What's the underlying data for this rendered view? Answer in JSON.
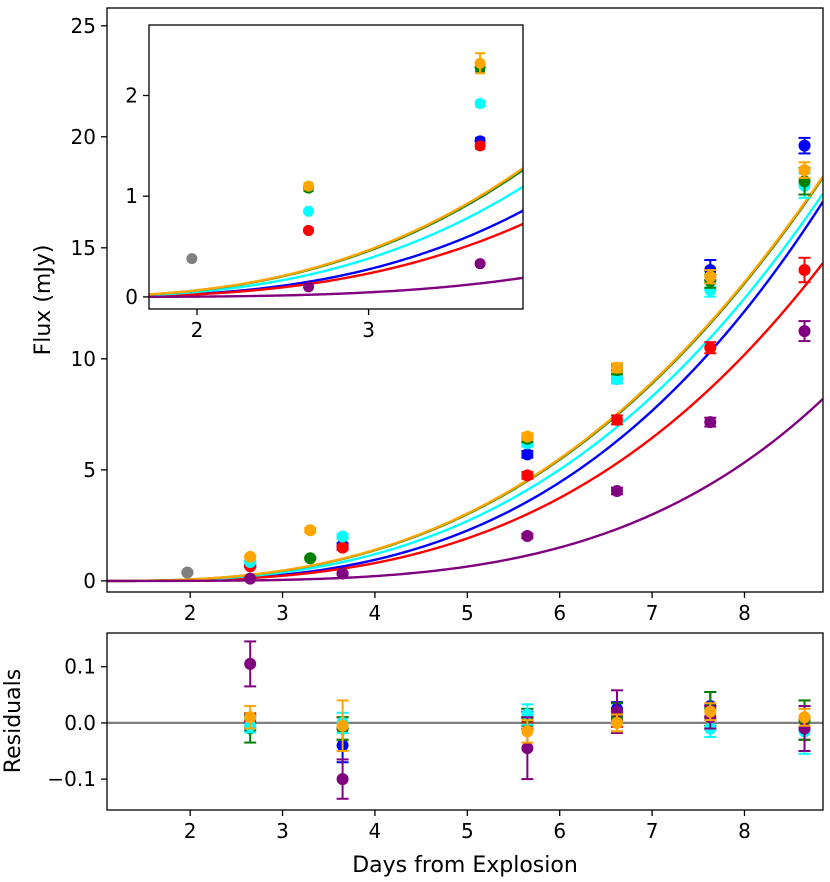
{
  "chart_data": [
    {
      "id": "main",
      "type": "line",
      "xlabel": "",
      "ylabel": "Flux (mJy)",
      "xlim": [
        1.1,
        8.85
      ],
      "ylim": [
        -0.5,
        25.8
      ],
      "xticks": [
        2,
        3,
        4,
        5,
        6,
        7,
        8
      ],
      "yticks": [
        0,
        5,
        10,
        15,
        20,
        25
      ],
      "grid": false,
      "series": [
        {
          "color": "#0000ff",
          "fit": {
            "a": 0.0415,
            "t0": 1.1,
            "p": 2.94
          },
          "x": [
            2.65,
            3.65,
            5.65,
            6.62,
            7.63,
            8.65
          ],
          "y": [
            0.68,
            1.6,
            5.7,
            9.1,
            14.0,
            19.6
          ],
          "err": [
            0.05,
            0.1,
            0.15,
            0.2,
            0.45,
            0.35
          ]
        },
        {
          "color": "#ff0000",
          "fit": {
            "a": 0.0355,
            "t0": 1.1,
            "p": 2.93
          },
          "x": [
            2.65,
            3.65,
            5.65,
            6.62,
            7.63,
            8.65
          ],
          "y": [
            0.66,
            1.5,
            4.75,
            7.25,
            10.5,
            14.0
          ],
          "err": [
            0.05,
            0.1,
            0.15,
            0.2,
            0.25,
            0.55
          ]
        },
        {
          "color": "#00ffff",
          "fit": {
            "a": 0.0665,
            "t0": 1.1,
            "p": 2.72
          },
          "x": [
            2.65,
            3.65,
            5.65,
            6.62,
            7.63,
            8.65
          ],
          "y": [
            0.85,
            2.0,
            6.2,
            9.1,
            13.1,
            17.8
          ],
          "err": [
            0.05,
            0.1,
            0.15,
            0.2,
            0.3,
            0.55
          ]
        },
        {
          "color": "#008000",
          "fit": {
            "a": 0.085,
            "t0": 1.1,
            "p": 2.62
          },
          "x": [
            3.3,
            5.65,
            6.62,
            7.63,
            8.65
          ],
          "y": [
            1.02,
            6.4,
            9.5,
            13.5,
            18.0
          ],
          "err": [
            0.05,
            0.15,
            0.2,
            0.3,
            0.6
          ]
        },
        {
          "color": "#ffa500",
          "fit": {
            "a": 0.087,
            "t0": 1.1,
            "p": 2.61
          },
          "x": [
            2.65,
            3.3,
            5.65,
            6.62,
            7.63,
            8.65
          ],
          "y": [
            1.08,
            2.28,
            6.5,
            9.6,
            13.7,
            18.5
          ],
          "err": [
            0.05,
            0.1,
            0.15,
            0.2,
            0.3,
            0.35
          ]
        },
        {
          "color": "#800080",
          "fit": {
            "a": 0.0042,
            "t0": 1.1,
            "p": 3.7
          },
          "x": [
            2.65,
            3.65,
            5.65,
            6.62,
            7.63,
            8.65
          ],
          "y": [
            0.1,
            0.33,
            2.02,
            4.05,
            7.15,
            11.25
          ],
          "err": [
            0.04,
            0.05,
            0.1,
            0.15,
            0.2,
            0.45
          ]
        },
        {
          "color": "#808080",
          "x": [
            1.97
          ],
          "y": [
            0.38
          ],
          "err": [
            0.05
          ]
        }
      ]
    },
    {
      "id": "inset",
      "type": "line",
      "xlabel": "",
      "ylabel": "",
      "xlim": [
        1.72,
        3.9
      ],
      "ylim": [
        -0.12,
        2.7
      ],
      "xticks": [
        2,
        3
      ],
      "yticks": [
        0,
        1,
        2
      ],
      "grid": false,
      "series": [
        {
          "color": "#0000ff",
          "fit": {
            "a": 0.0415,
            "t0": 1.1,
            "p": 2.94
          },
          "x": [
            2.65,
            3.65
          ],
          "y": [
            0.66,
            1.55
          ],
          "err": [
            0.02,
            0.03
          ]
        },
        {
          "color": "#ff0000",
          "fit": {
            "a": 0.0355,
            "t0": 1.1,
            "p": 2.93
          },
          "x": [
            2.65,
            3.65
          ],
          "y": [
            0.66,
            1.5
          ],
          "err": [
            0.02,
            0.03
          ]
        },
        {
          "color": "#00ffff",
          "fit": {
            "a": 0.0665,
            "t0": 1.1,
            "p": 2.72
          },
          "x": [
            2.65,
            3.65
          ],
          "y": [
            0.85,
            1.92
          ],
          "err": [
            0.02,
            0.03
          ]
        },
        {
          "color": "#008000",
          "fit": {
            "a": 0.085,
            "t0": 1.1,
            "p": 2.62
          },
          "x": [
            2.65,
            3.65
          ],
          "y": [
            1.08,
            2.28
          ],
          "err": [
            0.03,
            0.04
          ]
        },
        {
          "color": "#ffa500",
          "fit": {
            "a": 0.087,
            "t0": 1.1,
            "p": 2.61
          },
          "x": [
            2.65,
            3.65
          ],
          "y": [
            1.1,
            2.32
          ],
          "err": [
            0.03,
            0.1
          ]
        },
        {
          "color": "#800080",
          "fit": {
            "a": 0.0042,
            "t0": 1.1,
            "p": 3.7
          },
          "x": [
            2.65,
            3.65
          ],
          "y": [
            0.1,
            0.33
          ],
          "err": [
            0.01,
            0.02
          ]
        },
        {
          "color": "#808080",
          "x": [
            1.97
          ],
          "y": [
            0.38
          ],
          "err": [
            0.01
          ]
        }
      ]
    },
    {
      "id": "residuals",
      "type": "scatter",
      "xlabel": "Days from Explosion",
      "ylabel": "Residuals",
      "xlim": [
        1.1,
        8.85
      ],
      "ylim": [
        -0.155,
        0.16
      ],
      "xticks": [
        2,
        3,
        4,
        5,
        6,
        7,
        8
      ],
      "yticks": [
        0.1,
        0.0,
        -0.1
      ],
      "ytick_labels": [
        "0.1",
        "0.0",
        "−0.1"
      ],
      "zero_line": true,
      "grid": false,
      "series": [
        {
          "color": "#0000ff",
          "x": [
            2.65,
            3.65,
            5.65,
            6.62,
            7.63,
            8.65
          ],
          "y": [
            0.0,
            -0.04,
            0.01,
            0.025,
            0.03,
            -0.01
          ],
          "err": [
            0.012,
            0.03,
            0.01,
            0.012,
            0.025,
            0.02
          ]
        },
        {
          "color": "#ff0000",
          "x": [
            2.65,
            3.65,
            5.65,
            6.62,
            7.63,
            8.65
          ],
          "y": [
            0.005,
            -0.01,
            0.0,
            0.005,
            0.01,
            0.005
          ],
          "err": [
            0.012,
            0.02,
            0.01,
            0.012,
            0.02,
            0.035
          ]
        },
        {
          "color": "#008000",
          "x": [
            2.65,
            3.65,
            5.65,
            6.62,
            7.63,
            8.65
          ],
          "y": [
            -0.01,
            -0.01,
            0.01,
            0.01,
            0.025,
            0.005
          ],
          "err": [
            0.025,
            0.02,
            0.015,
            0.025,
            0.03,
            0.035
          ]
        },
        {
          "color": "#00ffff",
          "x": [
            2.65,
            3.65,
            5.65,
            6.62,
            7.63,
            8.65
          ],
          "y": [
            -0.005,
            0.0,
            0.015,
            0.0,
            -0.01,
            -0.015
          ],
          "err": [
            0.012,
            0.018,
            0.018,
            0.018,
            0.015,
            0.04
          ]
        },
        {
          "color": "#800080",
          "x": [
            2.65,
            3.65,
            5.65,
            6.62,
            7.63,
            8.65
          ],
          "y": [
            0.105,
            -0.1,
            -0.045,
            0.02,
            0.01,
            -0.01
          ],
          "err": [
            0.04,
            0.035,
            0.055,
            0.038,
            0.02,
            0.04
          ]
        },
        {
          "color": "#ffa500",
          "x": [
            2.65,
            3.65,
            5.65,
            6.62,
            7.63,
            8.65
          ],
          "y": [
            0.01,
            -0.005,
            -0.015,
            0.0,
            0.02,
            0.01
          ],
          "err": [
            0.02,
            0.045,
            0.02,
            0.015,
            0.015,
            0.015
          ]
        }
      ]
    }
  ]
}
